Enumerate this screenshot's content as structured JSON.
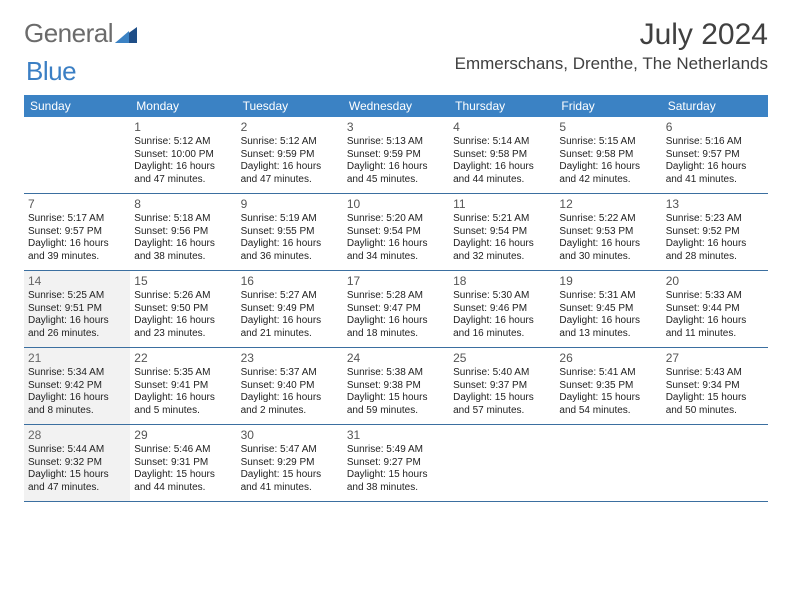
{
  "logo": {
    "text_gray": "General",
    "text_blue": "Blue"
  },
  "title": "July 2024",
  "location": "Emmerschans, Drenthe, The Netherlands",
  "colors": {
    "header_bg": "#3b82c4",
    "header_text": "#ffffff",
    "rule": "#3b6fa0",
    "shaded_bg": "#f2f2f2",
    "body_text": "#222222",
    "title_text": "#404040",
    "logo_gray": "#6b6b6b",
    "logo_blue": "#3b7fc4"
  },
  "day_headers": [
    "Sunday",
    "Monday",
    "Tuesday",
    "Wednesday",
    "Thursday",
    "Friday",
    "Saturday"
  ],
  "weeks": [
    [
      {
        "num": "",
        "sunrise": "",
        "sunset": "",
        "daylight": "",
        "shaded": false
      },
      {
        "num": "1",
        "sunrise": "Sunrise: 5:12 AM",
        "sunset": "Sunset: 10:00 PM",
        "daylight": "Daylight: 16 hours and 47 minutes.",
        "shaded": false
      },
      {
        "num": "2",
        "sunrise": "Sunrise: 5:12 AM",
        "sunset": "Sunset: 9:59 PM",
        "daylight": "Daylight: 16 hours and 47 minutes.",
        "shaded": false
      },
      {
        "num": "3",
        "sunrise": "Sunrise: 5:13 AM",
        "sunset": "Sunset: 9:59 PM",
        "daylight": "Daylight: 16 hours and 45 minutes.",
        "shaded": false
      },
      {
        "num": "4",
        "sunrise": "Sunrise: 5:14 AM",
        "sunset": "Sunset: 9:58 PM",
        "daylight": "Daylight: 16 hours and 44 minutes.",
        "shaded": false
      },
      {
        "num": "5",
        "sunrise": "Sunrise: 5:15 AM",
        "sunset": "Sunset: 9:58 PM",
        "daylight": "Daylight: 16 hours and 42 minutes.",
        "shaded": false
      },
      {
        "num": "6",
        "sunrise": "Sunrise: 5:16 AM",
        "sunset": "Sunset: 9:57 PM",
        "daylight": "Daylight: 16 hours and 41 minutes.",
        "shaded": false
      }
    ],
    [
      {
        "num": "7",
        "sunrise": "Sunrise: 5:17 AM",
        "sunset": "Sunset: 9:57 PM",
        "daylight": "Daylight: 16 hours and 39 minutes.",
        "shaded": false
      },
      {
        "num": "8",
        "sunrise": "Sunrise: 5:18 AM",
        "sunset": "Sunset: 9:56 PM",
        "daylight": "Daylight: 16 hours and 38 minutes.",
        "shaded": false
      },
      {
        "num": "9",
        "sunrise": "Sunrise: 5:19 AM",
        "sunset": "Sunset: 9:55 PM",
        "daylight": "Daylight: 16 hours and 36 minutes.",
        "shaded": false
      },
      {
        "num": "10",
        "sunrise": "Sunrise: 5:20 AM",
        "sunset": "Sunset: 9:54 PM",
        "daylight": "Daylight: 16 hours and 34 minutes.",
        "shaded": false
      },
      {
        "num": "11",
        "sunrise": "Sunrise: 5:21 AM",
        "sunset": "Sunset: 9:54 PM",
        "daylight": "Daylight: 16 hours and 32 minutes.",
        "shaded": false
      },
      {
        "num": "12",
        "sunrise": "Sunrise: 5:22 AM",
        "sunset": "Sunset: 9:53 PM",
        "daylight": "Daylight: 16 hours and 30 minutes.",
        "shaded": false
      },
      {
        "num": "13",
        "sunrise": "Sunrise: 5:23 AM",
        "sunset": "Sunset: 9:52 PM",
        "daylight": "Daylight: 16 hours and 28 minutes.",
        "shaded": false
      }
    ],
    [
      {
        "num": "14",
        "sunrise": "Sunrise: 5:25 AM",
        "sunset": "Sunset: 9:51 PM",
        "daylight": "Daylight: 16 hours and 26 minutes.",
        "shaded": true
      },
      {
        "num": "15",
        "sunrise": "Sunrise: 5:26 AM",
        "sunset": "Sunset: 9:50 PM",
        "daylight": "Daylight: 16 hours and 23 minutes.",
        "shaded": false
      },
      {
        "num": "16",
        "sunrise": "Sunrise: 5:27 AM",
        "sunset": "Sunset: 9:49 PM",
        "daylight": "Daylight: 16 hours and 21 minutes.",
        "shaded": false
      },
      {
        "num": "17",
        "sunrise": "Sunrise: 5:28 AM",
        "sunset": "Sunset: 9:47 PM",
        "daylight": "Daylight: 16 hours and 18 minutes.",
        "shaded": false
      },
      {
        "num": "18",
        "sunrise": "Sunrise: 5:30 AM",
        "sunset": "Sunset: 9:46 PM",
        "daylight": "Daylight: 16 hours and 16 minutes.",
        "shaded": false
      },
      {
        "num": "19",
        "sunrise": "Sunrise: 5:31 AM",
        "sunset": "Sunset: 9:45 PM",
        "daylight": "Daylight: 16 hours and 13 minutes.",
        "shaded": false
      },
      {
        "num": "20",
        "sunrise": "Sunrise: 5:33 AM",
        "sunset": "Sunset: 9:44 PM",
        "daylight": "Daylight: 16 hours and 11 minutes.",
        "shaded": false
      }
    ],
    [
      {
        "num": "21",
        "sunrise": "Sunrise: 5:34 AM",
        "sunset": "Sunset: 9:42 PM",
        "daylight": "Daylight: 16 hours and 8 minutes.",
        "shaded": true
      },
      {
        "num": "22",
        "sunrise": "Sunrise: 5:35 AM",
        "sunset": "Sunset: 9:41 PM",
        "daylight": "Daylight: 16 hours and 5 minutes.",
        "shaded": false
      },
      {
        "num": "23",
        "sunrise": "Sunrise: 5:37 AM",
        "sunset": "Sunset: 9:40 PM",
        "daylight": "Daylight: 16 hours and 2 minutes.",
        "shaded": false
      },
      {
        "num": "24",
        "sunrise": "Sunrise: 5:38 AM",
        "sunset": "Sunset: 9:38 PM",
        "daylight": "Daylight: 15 hours and 59 minutes.",
        "shaded": false
      },
      {
        "num": "25",
        "sunrise": "Sunrise: 5:40 AM",
        "sunset": "Sunset: 9:37 PM",
        "daylight": "Daylight: 15 hours and 57 minutes.",
        "shaded": false
      },
      {
        "num": "26",
        "sunrise": "Sunrise: 5:41 AM",
        "sunset": "Sunset: 9:35 PM",
        "daylight": "Daylight: 15 hours and 54 minutes.",
        "shaded": false
      },
      {
        "num": "27",
        "sunrise": "Sunrise: 5:43 AM",
        "sunset": "Sunset: 9:34 PM",
        "daylight": "Daylight: 15 hours and 50 minutes.",
        "shaded": false
      }
    ],
    [
      {
        "num": "28",
        "sunrise": "Sunrise: 5:44 AM",
        "sunset": "Sunset: 9:32 PM",
        "daylight": "Daylight: 15 hours and 47 minutes.",
        "shaded": true
      },
      {
        "num": "29",
        "sunrise": "Sunrise: 5:46 AM",
        "sunset": "Sunset: 9:31 PM",
        "daylight": "Daylight: 15 hours and 44 minutes.",
        "shaded": false
      },
      {
        "num": "30",
        "sunrise": "Sunrise: 5:47 AM",
        "sunset": "Sunset: 9:29 PM",
        "daylight": "Daylight: 15 hours and 41 minutes.",
        "shaded": false
      },
      {
        "num": "31",
        "sunrise": "Sunrise: 5:49 AM",
        "sunset": "Sunset: 9:27 PM",
        "daylight": "Daylight: 15 hours and 38 minutes.",
        "shaded": false
      },
      {
        "num": "",
        "sunrise": "",
        "sunset": "",
        "daylight": "",
        "shaded": false
      },
      {
        "num": "",
        "sunrise": "",
        "sunset": "",
        "daylight": "",
        "shaded": false
      },
      {
        "num": "",
        "sunrise": "",
        "sunset": "",
        "daylight": "",
        "shaded": false
      }
    ]
  ]
}
